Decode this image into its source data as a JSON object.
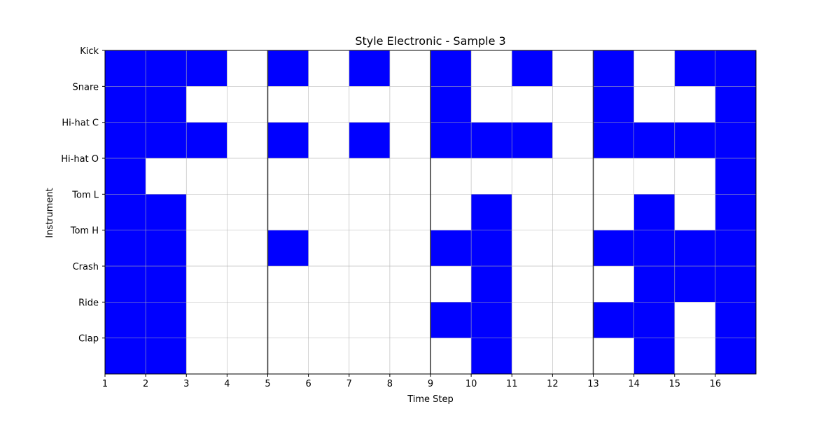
{
  "chart_data": {
    "type": "heatmap",
    "title": "Style Electronic - Sample 3",
    "xlabel": "Time Step",
    "ylabel": "Instrument",
    "x_ticks": [
      "1",
      "2",
      "3",
      "4",
      "5",
      "6",
      "7",
      "8",
      "9",
      "10",
      "11",
      "12",
      "13",
      "14",
      "15",
      "16"
    ],
    "y_ticks": [
      "Kick",
      "Snare",
      "Hi-hat C",
      "Hi-hat O",
      "Tom L",
      "Tom H",
      "Crash",
      "Ride",
      "Clap"
    ],
    "cols": 16,
    "rows": 9,
    "grid": true,
    "bar_lines_at": [
      5,
      9,
      13
    ],
    "colors": {
      "on": "#0000ff",
      "off": "#ffffff",
      "grid": "#b0b0b0",
      "bar_line": "#333333"
    },
    "matrix": [
      [
        1,
        1,
        1,
        0,
        1,
        0,
        1,
        0,
        1,
        0,
        1,
        0,
        1,
        0,
        1,
        1
      ],
      [
        1,
        1,
        0,
        0,
        0,
        0,
        0,
        0,
        1,
        0,
        0,
        0,
        1,
        0,
        0,
        1
      ],
      [
        1,
        1,
        1,
        0,
        1,
        0,
        1,
        0,
        1,
        1,
        1,
        0,
        1,
        1,
        1,
        1
      ],
      [
        1,
        0,
        0,
        0,
        0,
        0,
        0,
        0,
        0,
        0,
        0,
        0,
        0,
        0,
        0,
        1
      ],
      [
        1,
        1,
        0,
        0,
        0,
        0,
        0,
        0,
        0,
        1,
        0,
        0,
        0,
        1,
        0,
        1
      ],
      [
        1,
        1,
        0,
        0,
        1,
        0,
        0,
        0,
        1,
        1,
        0,
        0,
        1,
        1,
        1,
        1
      ],
      [
        1,
        1,
        0,
        0,
        0,
        0,
        0,
        0,
        0,
        1,
        0,
        0,
        0,
        1,
        1,
        1
      ],
      [
        1,
        1,
        0,
        0,
        0,
        0,
        0,
        0,
        1,
        1,
        0,
        0,
        1,
        1,
        0,
        1
      ],
      [
        1,
        1,
        0,
        0,
        0,
        0,
        0,
        0,
        0,
        1,
        0,
        0,
        0,
        1,
        0,
        1
      ]
    ]
  }
}
